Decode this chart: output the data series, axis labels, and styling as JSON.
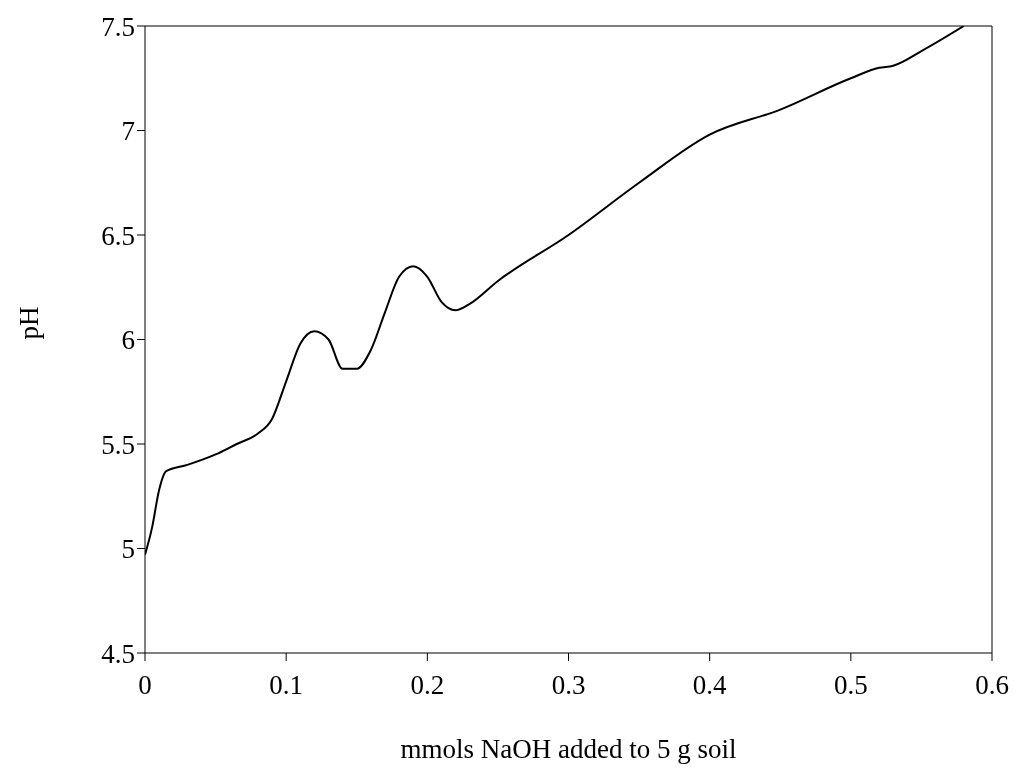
{
  "chart_data": {
    "type": "line",
    "xlabel": "mmols NaOH added to 5 g soil",
    "ylabel": "pH",
    "x": [
      0,
      0.005,
      0.01,
      0.015,
      0.03,
      0.05,
      0.065,
      0.08,
      0.09,
      0.1,
      0.11,
      0.12,
      0.13,
      0.14,
      0.15,
      0.16,
      0.17,
      0.18,
      0.19,
      0.2,
      0.21,
      0.22,
      0.23,
      0.25,
      0.3,
      0.35,
      0.4,
      0.45,
      0.5,
      0.52,
      0.53,
      0.55,
      0.58
    ],
    "series": [
      {
        "color": "#000000",
        "values": [
          4.97,
          5.1,
          5.28,
          5.37,
          5.4,
          5.45,
          5.5,
          5.55,
          5.62,
          5.8,
          5.98,
          6.04,
          6.0,
          5.86,
          5.86,
          5.95,
          6.13,
          6.3,
          6.35,
          6.3,
          6.18,
          6.14,
          6.17,
          6.28,
          6.5,
          6.75,
          6.98,
          7.1,
          7.25,
          7.3,
          7.31,
          7.38,
          7.5
        ]
      }
    ],
    "xlim": [
      0,
      0.6
    ],
    "xticks": [
      0,
      0.1,
      0.2,
      0.3,
      0.4,
      0.5,
      0.6
    ],
    "ylim": [
      4.5,
      7.5
    ],
    "yticks": [
      4.5,
      5,
      5.5,
      6,
      6.5,
      7,
      7.5
    ],
    "grid": false,
    "legend": false,
    "marker": "none",
    "line_style": "solid"
  }
}
